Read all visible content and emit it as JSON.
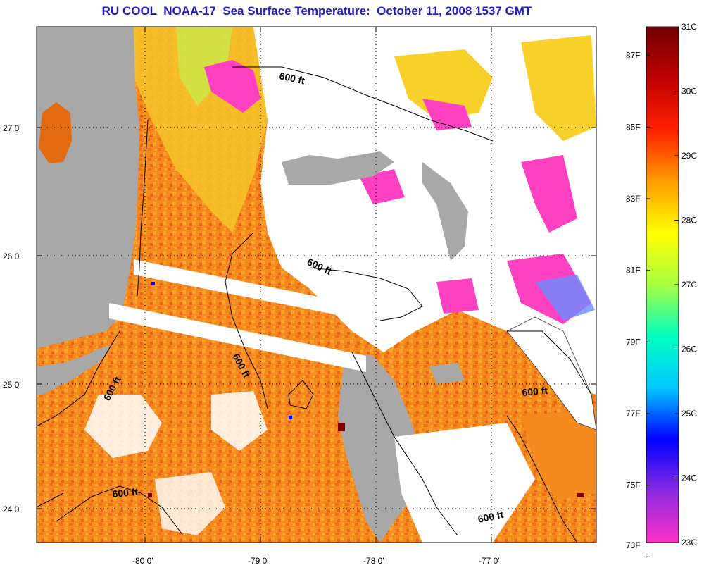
{
  "title": "RU COOL  NOAA-17  Sea Surface Temperature:  October 11, 2008 1537 GMT",
  "map": {
    "lon_ticks": [
      "-80 0'",
      "-79 0'",
      "-78 0'",
      "-77 0'"
    ],
    "lat_ticks": [
      "27 0'",
      "26 0'",
      "25 0'",
      "24 0'"
    ],
    "lon_range": [
      -80.9,
      -76.05
    ],
    "lat_range": [
      23.7,
      27.8
    ],
    "grid": true,
    "depth_contour_labels": [
      "600 ft",
      "600 ft",
      "600 ft",
      "600 ft",
      "600 ft",
      "600 ft"
    ]
  },
  "colorbar": {
    "celsius_labels": [
      "31C",
      "30C",
      "29C",
      "28C",
      "27C",
      "26C",
      "25C",
      "24C",
      "23C"
    ],
    "fahrenheit_labels": [
      "87F",
      "85F",
      "83F",
      "81F",
      "79F",
      "77F",
      "75F",
      "73F"
    ],
    "range_c": [
      23,
      31
    ],
    "stops": [
      "#ff30c8",
      "#8a2be2",
      "#0000ff",
      "#00c8ff",
      "#00ffc0",
      "#a8ff40",
      "#ffff00",
      "#ff9c00",
      "#ff2000",
      "#c00000",
      "#700000"
    ]
  },
  "colors": {
    "land": "#a8a8a8",
    "cloud": "#ffffff",
    "warm_water": "#f58a1e",
    "title": "#1c1cc8"
  }
}
